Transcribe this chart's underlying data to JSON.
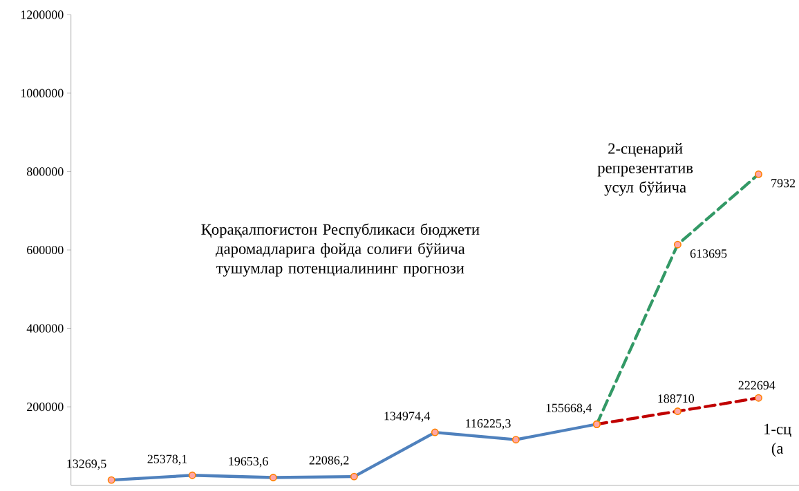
{
  "chart_data": {
    "type": "line",
    "title": "Қорақалпоғистон Республикаси бюджети даромадларига фойда солиғи бўйича тушумлар потенциалининг прогнози",
    "categories": [
      null,
      null,
      null,
      null,
      null,
      null,
      null,
      null,
      null
    ],
    "series": [
      {
        "color": "#4f81bd",
        "line_style": "solid",
        "values": [
          13269.5,
          25378.1,
          19653.6,
          22086.2,
          134974.4,
          116225.3,
          155668.4,
          null,
          null
        ],
        "value_labels": [
          "13269,5",
          "25378,1",
          "19653,6",
          "22086,2",
          "134974,4",
          "116225,3",
          "155668,4",
          null,
          null
        ]
      },
      {
        "name": "1-сц (а",
        "color": "#c00000",
        "line_style": "dashed",
        "values": [
          null,
          null,
          null,
          null,
          null,
          null,
          155668.4,
          188710,
          222694
        ],
        "value_labels": [
          null,
          null,
          null,
          null,
          null,
          null,
          null,
          "188710",
          "222694"
        ]
      },
      {
        "name": "2-сценарий репрезентатив усул бўйича",
        "color": "#339966",
        "line_style": "dashed",
        "values": [
          null,
          null,
          null,
          null,
          null,
          null,
          155668.4,
          613695,
          793200
        ],
        "value_labels": [
          null,
          null,
          null,
          null,
          null,
          null,
          null,
          "613695",
          null
        ]
      }
    ],
    "annotations": [
      "7932"
    ],
    "marker": "circle",
    "ylim": [
      0,
      1200000
    ],
    "yticks": [
      200000,
      400000,
      600000,
      800000,
      1000000,
      1200000
    ]
  }
}
